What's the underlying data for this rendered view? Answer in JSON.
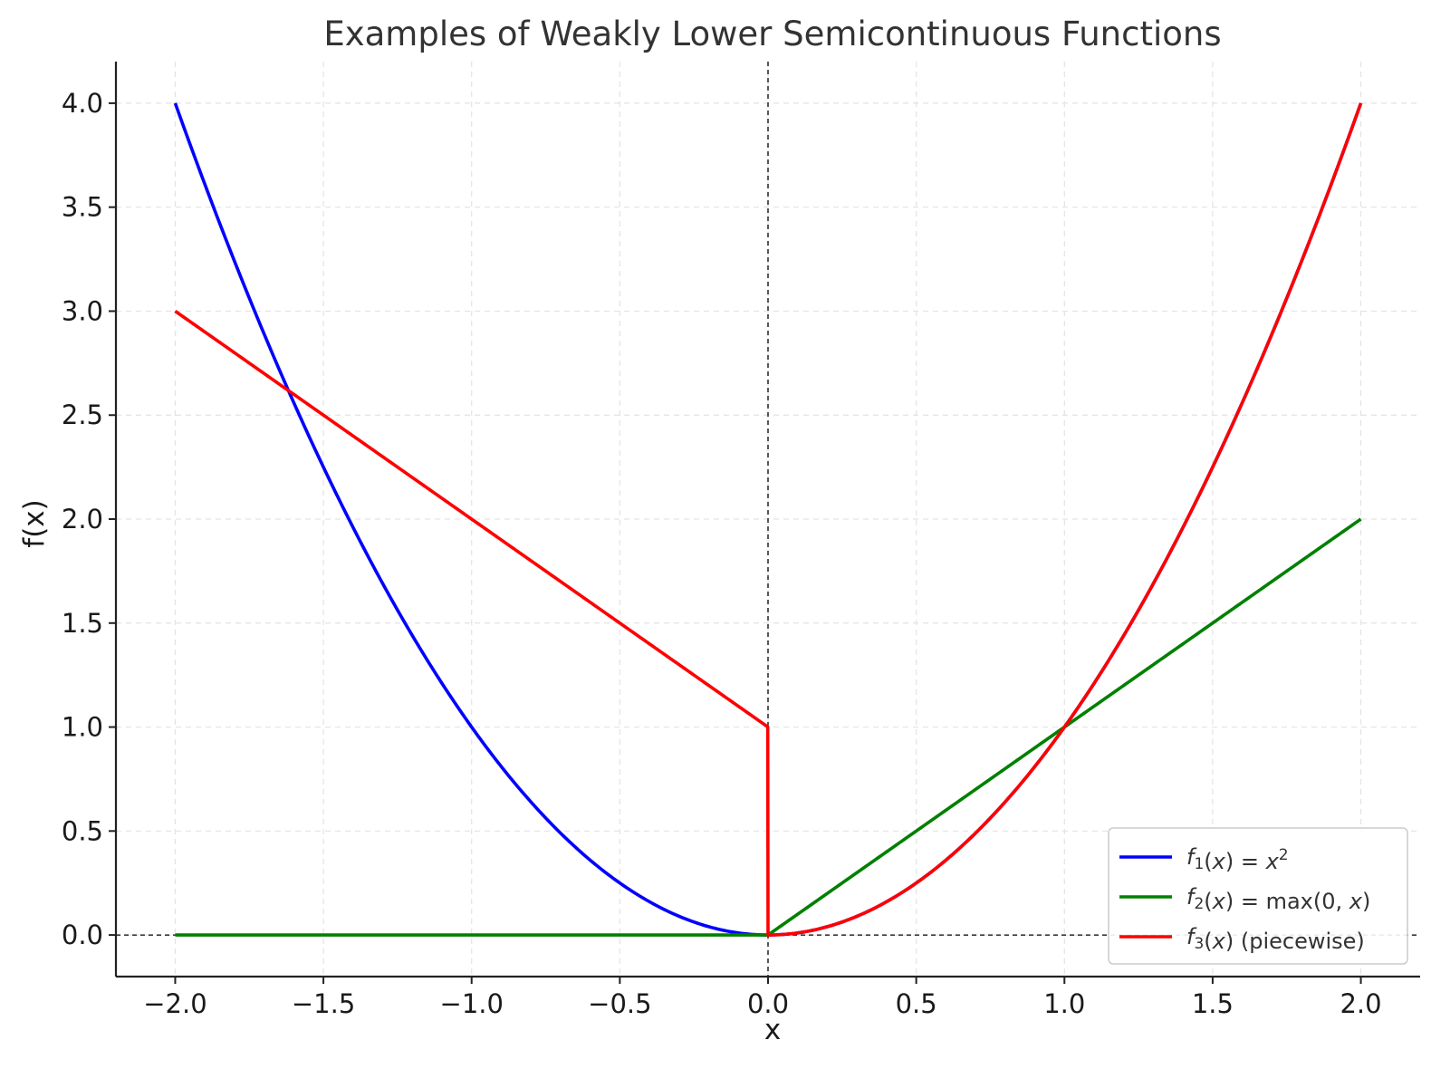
{
  "chart_data": {
    "type": "line",
    "title": "Examples of Weakly Lower Semicontinuous Functions",
    "xlabel": "x",
    "ylabel": "f(x)",
    "xlim": [
      -2.2,
      2.2
    ],
    "ylim": [
      -0.2,
      4.2
    ],
    "xticks": [
      -2.0,
      -1.5,
      -1.0,
      -0.5,
      0.0,
      0.5,
      1.0,
      1.5,
      2.0
    ],
    "xtick_labels": [
      "−2.0",
      "−1.5",
      "−1.0",
      "−0.5",
      "0.0",
      "0.5",
      "1.0",
      "1.5",
      "2.0"
    ],
    "yticks": [
      0.0,
      0.5,
      1.0,
      1.5,
      2.0,
      2.5,
      3.0,
      3.5,
      4.0
    ],
    "ytick_labels": [
      "0.0",
      "0.5",
      "1.0",
      "1.5",
      "2.0",
      "2.5",
      "3.0",
      "3.5",
      "4.0"
    ],
    "grid": true,
    "legend_position": "lower-right",
    "reference_lines": {
      "x": 0,
      "y": 0
    },
    "series": [
      {
        "name": "f1(x) = x^2",
        "color": "#0000ff",
        "x": [
          -2.0,
          -1.8,
          -1.6,
          -1.4,
          -1.2,
          -1.0,
          -0.8,
          -0.6,
          -0.4,
          -0.2,
          0.0,
          0.2,
          0.4,
          0.6,
          0.8,
          1.0,
          1.2,
          1.4,
          1.6,
          1.8,
          2.0
        ],
        "y": [
          4.0,
          3.24,
          2.56,
          1.96,
          1.44,
          1.0,
          0.64,
          0.36,
          0.16,
          0.04,
          0.0,
          0.04,
          0.16,
          0.36,
          0.64,
          1.0,
          1.44,
          1.96,
          2.56,
          3.24,
          4.0
        ]
      },
      {
        "name": "f2(x) = max(0, x)",
        "color": "#008000",
        "x": [
          -2.0,
          0.0,
          2.0
        ],
        "y": [
          0.0,
          0.0,
          2.0
        ]
      },
      {
        "name": "f3(x) (piecewise)",
        "color": "#ff0000",
        "x": [
          -2.0,
          -0.01,
          0.0,
          0.2,
          0.4,
          0.6,
          0.8,
          1.0,
          1.2,
          1.4,
          1.6,
          1.8,
          2.0
        ],
        "y": [
          3.0,
          1.0,
          0.0,
          0.04,
          0.16,
          0.36,
          0.64,
          1.0,
          1.44,
          1.96,
          2.56,
          3.24,
          4.0
        ]
      }
    ],
    "legend": [
      {
        "color": "#0000ff",
        "fname": "f",
        "sub": "1",
        "mid": "(",
        "var": "x",
        "rest": ") = ",
        "var2": "x",
        "sup": "2",
        "tail": ""
      },
      {
        "color": "#008000",
        "fname": "f",
        "sub": "2",
        "mid": "(",
        "var": "x",
        "rest": ") = max(0, ",
        "var2": "x",
        "sup": "",
        "tail": ")"
      },
      {
        "color": "#ff0000",
        "fname": "f",
        "sub": "3",
        "mid": "(",
        "var": "x",
        "rest": ") (piecewise)",
        "var2": "",
        "sup": "",
        "tail": ""
      }
    ]
  }
}
